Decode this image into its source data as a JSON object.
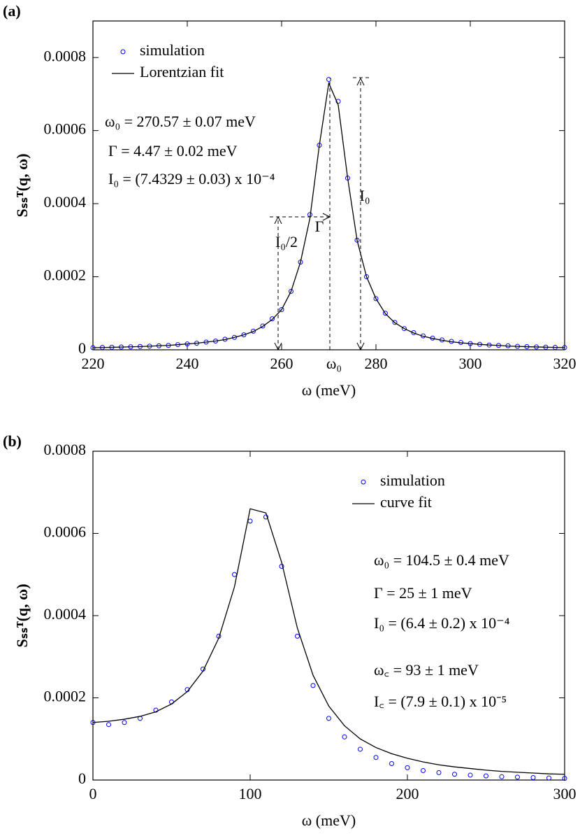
{
  "chart_data": [
    {
      "type": "scatter",
      "label": "(a)",
      "xlabel": "ω (meV)",
      "ylabel": "Sₛₛᵀ(q, ω)",
      "xlim": [
        220,
        320
      ],
      "xticks": [
        220,
        240,
        260,
        280,
        300,
        320
      ],
      "ylim": [
        0,
        0.0009
      ],
      "yticks": [
        0,
        0.0002,
        0.0004,
        0.0006,
        0.0008
      ],
      "legend": "upper left",
      "x": [
        220,
        222,
        224,
        226,
        228,
        230,
        232,
        234,
        236,
        238,
        240,
        242,
        244,
        246,
        248,
        250,
        252,
        254,
        256,
        258,
        260,
        262,
        264,
        266,
        268,
        270,
        272,
        274,
        276,
        278,
        280,
        282,
        284,
        286,
        288,
        290,
        292,
        294,
        296,
        298,
        300,
        302,
        304,
        306,
        308,
        310,
        312,
        314,
        316,
        318,
        320
      ],
      "series": [
        {
          "name": "simulation",
          "color": "#0000ff",
          "mode": "markers",
          "values": [
            5.8e-06,
            6.4e-06,
            6.9e-06,
            7.6e-06,
            8.2e-06,
            9.1e-06,
            9.9e-06,
            1.1e-05,
            1.2e-05,
            1.4e-05,
            1.6e-05,
            1.8e-05,
            2.1e-05,
            2.4e-05,
            2.9e-05,
            3.4e-05,
            4.1e-05,
            5.1e-05,
            6.5e-05,
            8.5e-05,
            0.00011,
            0.00016,
            0.00024,
            0.00037,
            0.00056,
            0.00074,
            0.00068,
            0.00047,
            0.0003,
            0.0002,
            0.00014,
            0.0001,
            7.5e-05,
            5.8e-05,
            4.7e-05,
            3.8e-05,
            3.2e-05,
            2.7e-05,
            2.3e-05,
            2e-05,
            1.7e-05,
            1.5e-05,
            1.3e-05,
            1.2e-05,
            1.1e-05,
            9.5e-06,
            8.6e-06,
            7.9e-06,
            7.2e-06,
            6.6e-06,
            6.1e-06
          ]
        },
        {
          "name": "Lorentzian fit",
          "color": "#000000",
          "mode": "line",
          "values": [
            5.8e-06,
            6.2e-06,
            6.8e-06,
            7.4e-06,
            8.1e-06,
            8.9e-06,
            9.8e-06,
            1.1e-05,
            1.2e-05,
            1.4e-05,
            1.6e-05,
            1.8e-05,
            2.1e-05,
            2.4e-05,
            2.8e-05,
            3.4e-05,
            4.1e-05,
            5e-05,
            6.4e-05,
            8.3e-05,
            0.00011,
            0.00016,
            0.00024,
            0.00036,
            0.00056,
            0.00073,
            0.00067,
            0.00047,
            0.0003,
            0.0002,
            0.00014,
            9.9e-05,
            7.4e-05,
            5.8e-05,
            4.6e-05,
            3.7e-05,
            3.1e-05,
            2.6e-05,
            2.2e-05,
            1.9e-05,
            1.7e-05,
            1.5e-05,
            1.3e-05,
            1.2e-05,
            1e-05,
            9.4e-06,
            8.5e-06,
            7.8e-06,
            7.1e-06,
            6.5e-06,
            6e-06
          ]
        }
      ],
      "annotations": [
        "ω₀ = 270.57 ± 0.07 meV",
        "Γ = 4.47 ± 0.02 meV",
        "I₀ = (7.4329 ± 0.03) x 10⁻⁴",
        "Γ",
        "I₀",
        "I₀/2",
        "ω₀"
      ]
    },
    {
      "type": "scatter",
      "label": "(b)",
      "xlabel": "ω (meV)",
      "ylabel": "Sₛₛᵀ(q, ω)",
      "xlim": [
        0,
        300
      ],
      "xticks": [
        0,
        100,
        200,
        300
      ],
      "ylim": [
        0,
        0.0008
      ],
      "yticks": [
        0,
        0.0002,
        0.0004,
        0.0006,
        0.0008
      ],
      "legend": "upper right",
      "x": [
        0,
        10,
        20,
        30,
        40,
        50,
        60,
        70,
        80,
        90,
        100,
        110,
        120,
        130,
        140,
        150,
        160,
        170,
        180,
        190,
        200,
        210,
        220,
        230,
        240,
        250,
        260,
        270,
        280,
        290,
        300
      ],
      "series": [
        {
          "name": "simulation",
          "color": "#0000ff",
          "mode": "markers",
          "values": [
            0.00014,
            0.000135,
            0.00014,
            0.00015,
            0.00017,
            0.00019,
            0.00022,
            0.00027,
            0.00035,
            0.0005,
            0.00063,
            0.00064,
            0.00052,
            0.00035,
            0.00023,
            0.00015,
            0.000105,
            7.5e-05,
            5.5e-05,
            4e-05,
            3e-05,
            2.3e-05,
            1.8e-05,
            1.4e-05,
            1.2e-05,
            1e-05,
            8e-06,
            7e-06,
            6e-06,
            5e-06,
            4e-06
          ]
        },
        {
          "name": "curve fit",
          "color": "#000000",
          "mode": "line",
          "values": [
            0.00014,
            0.000143,
            0.000148,
            0.000155,
            0.000166,
            0.000185,
            0.000215,
            0.000265,
            0.000345,
            0.00047,
            0.00066,
            0.00065,
            0.00053,
            0.00037,
            0.000255,
            0.00018,
            0.000132,
            0.0001,
            7.9e-05,
            6.4e-05,
            5.3e-05,
            4.4e-05,
            3.7e-05,
            3.2e-05,
            2.8e-05,
            2.4e-05,
            2.1e-05,
            1.9e-05,
            1.7e-05,
            1.5e-05,
            1.4e-05
          ]
        }
      ],
      "annotations": [
        "ω₀ = 104.5 ± 0.4 meV",
        "Γ = 25 ± 1 meV",
        "I₀ = (6.4 ± 0.2) x 10⁻⁴",
        "ω꜀ = 93 ± 1 meV",
        "I꜀ = (7.9 ± 0.1) x 10⁻⁵"
      ]
    }
  ]
}
